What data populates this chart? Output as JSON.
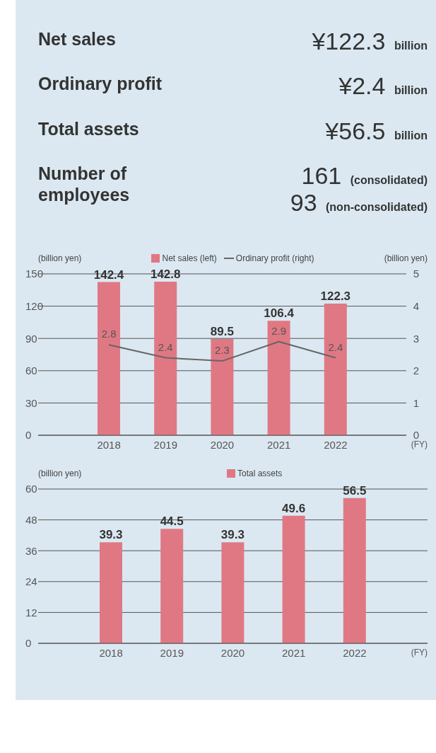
{
  "chart_data": [
    {
      "type": "other",
      "annotations": [
        "Net sales",
        "¥122.3 billion",
        "Ordinary profit",
        "¥2.4 billion",
        "Total assets",
        "¥56.5 billion",
        "Number of employees",
        "161 (consolidated)",
        "93 (non-consolidated)"
      ]
    },
    {
      "type": "bar",
      "categories": [
        "2018",
        "2019",
        "2020",
        "2021",
        "2022"
      ],
      "ylabel": "(billion yen)",
      "y2label": "(billion yen)",
      "xlabel": "(FY)",
      "ylim": [
        0,
        150
      ],
      "yticks": [
        0,
        30,
        60,
        90,
        120,
        150
      ],
      "y2lim": [
        0,
        5
      ],
      "y2ticks": [
        0,
        1,
        2,
        3,
        4,
        5
      ],
      "grid": "y",
      "legend": "top",
      "data_labels": true,
      "marker": "none",
      "series": [
        {
          "name": "Net sales (left)",
          "type": "bar",
          "color": "#e07884",
          "values": [
            142.4,
            142.8,
            89.5,
            106.4,
            122.3
          ]
        },
        {
          "name": "Ordinary profit (right)",
          "type": "line",
          "axis": "y2",
          "color": "#666666",
          "values": [
            2.8,
            2.4,
            2.3,
            2.9,
            2.4
          ]
        }
      ]
    },
    {
      "type": "bar",
      "categories": [
        "2018",
        "2019",
        "2020",
        "2021",
        "2022"
      ],
      "ylabel": "(billion yen)",
      "xlabel": "(FY)",
      "ylim": [
        0,
        60
      ],
      "yticks": [
        0,
        12,
        24,
        36,
        48,
        60
      ],
      "grid": "y",
      "legend": "top",
      "data_labels": true,
      "series": [
        {
          "name": "Total assets",
          "color": "#e07884",
          "values": [
            39.3,
            44.5,
            39.3,
            49.6,
            56.5
          ]
        }
      ]
    }
  ]
}
